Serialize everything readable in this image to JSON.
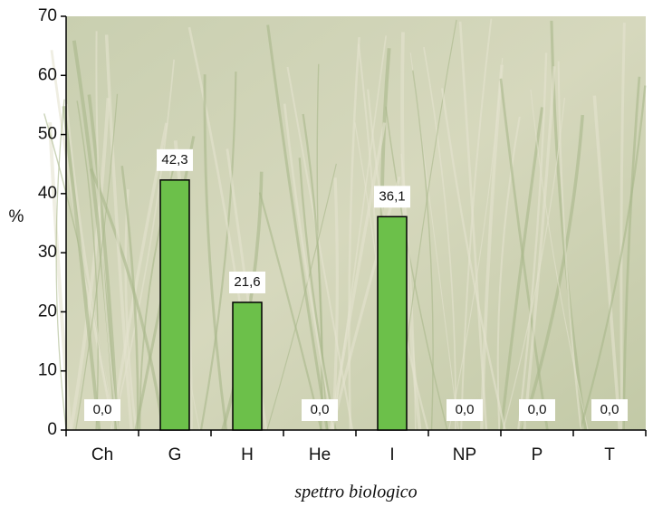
{
  "chart_data": {
    "type": "bar",
    "categories": [
      "Ch",
      "G",
      "H",
      "He",
      "I",
      "NP",
      "P",
      "T"
    ],
    "values": [
      0.0,
      42.3,
      21.6,
      0.0,
      36.1,
      0.0,
      0.0,
      0.0
    ],
    "value_labels": [
      "0,0",
      "42,3",
      "21,6",
      "0,0",
      "36,1",
      "0,0",
      "0,0",
      "0,0"
    ],
    "color": "#6cc04a",
    "ylim": [
      0,
      70
    ],
    "yticks": [
      0,
      10,
      20,
      30,
      40,
      50,
      60,
      70
    ],
    "ylabel": "%",
    "xlabel": "spettro biologico"
  }
}
